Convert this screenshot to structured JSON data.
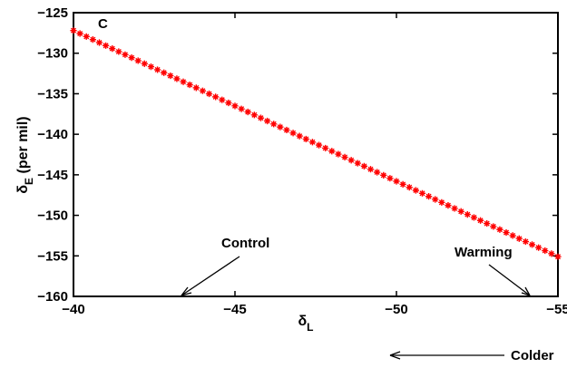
{
  "chart_data": {
    "type": "scatter",
    "x_reversed": true,
    "xlim": [
      -40,
      -55
    ],
    "ylim": [
      -160,
      -125
    ],
    "xticks": [
      -40,
      -45,
      -50,
      -55
    ],
    "xtick_labels": [
      "−40",
      "−45",
      "−50",
      "−55"
    ],
    "yticks": [
      -125,
      -130,
      -135,
      -140,
      -145,
      -150,
      -155,
      -160
    ],
    "ytick_labels": [
      "−125",
      "−130",
      "−135",
      "−140",
      "−145",
      "−150",
      "−155",
      "−160"
    ],
    "xlabel": {
      "main": "δ",
      "sub": "L",
      "suffix": ""
    },
    "ylabel": {
      "main": "δ",
      "sub": "E",
      "suffix": " (per mil)"
    },
    "grid": false,
    "series": [
      {
        "marker": "*",
        "color": "#ff0000",
        "x_start": -40,
        "x_end": -55,
        "y_start": -127.2,
        "y_end": -155.1,
        "n_points": 76
      }
    ],
    "annotations": {
      "panel_label": "C",
      "control": "Control",
      "warming": "Warming",
      "colder": "Colder"
    }
  }
}
